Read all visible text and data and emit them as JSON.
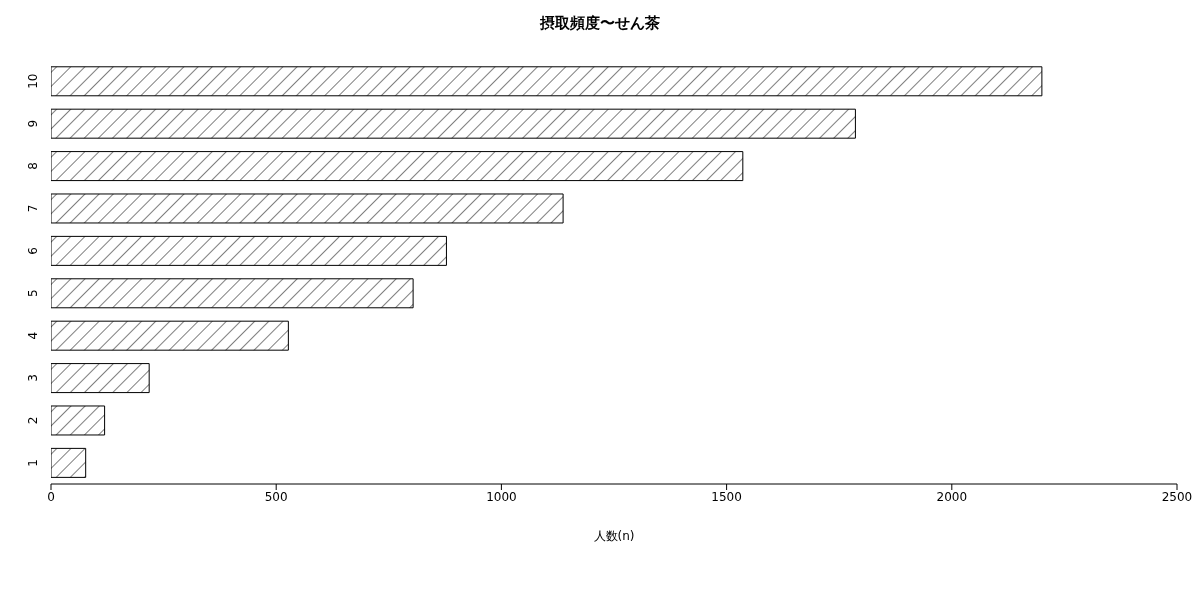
{
  "chart_data": {
    "type": "bar",
    "orientation": "horizontal",
    "title": "摂取頻度〜せん茶",
    "xlabel": "人数(n)",
    "categories": [
      "10",
      "9",
      "8",
      "7",
      "6",
      "5",
      "4",
      "3",
      "2",
      "1"
    ],
    "values": [
      2200,
      1786,
      1536,
      1137,
      878,
      804,
      527,
      218,
      119,
      77
    ],
    "color": "#000000",
    "xlim": [
      0,
      2500
    ],
    "xticks": [
      0,
      500,
      1000,
      1500,
      2000,
      2500
    ],
    "grid": false,
    "legend": false
  }
}
